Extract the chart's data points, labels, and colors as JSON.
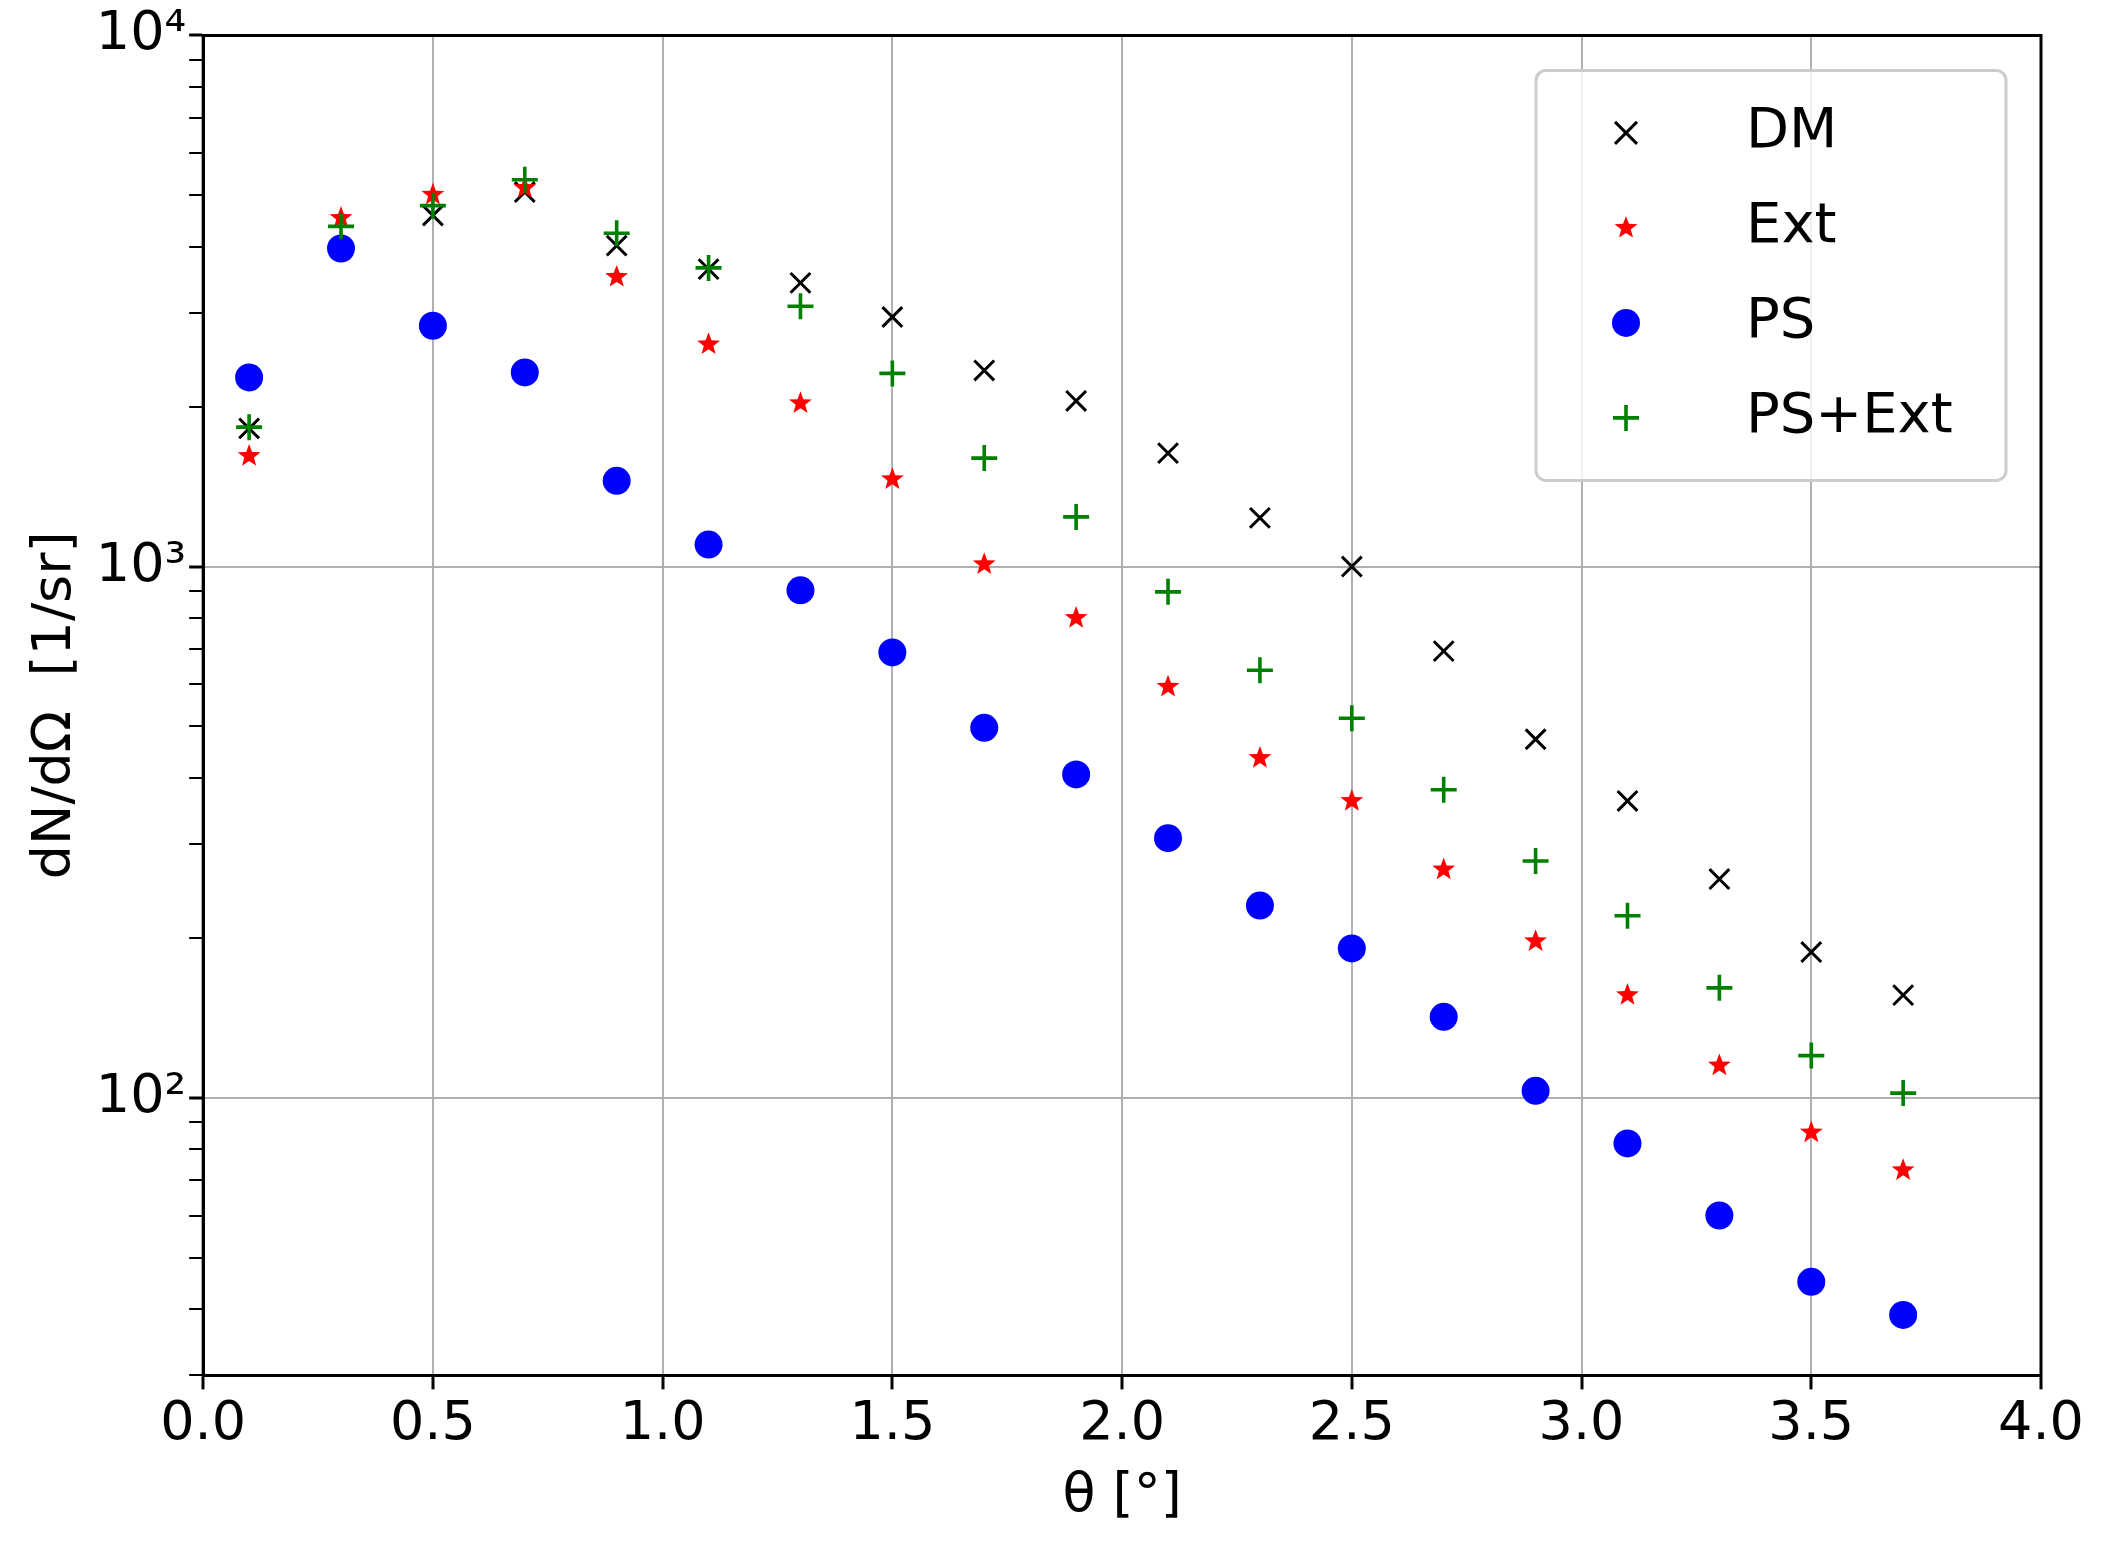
{
  "chart_data": {
    "type": "scatter",
    "xlabel": "θ [°]",
    "ylabel": "dN/dΩ  [1/sr]",
    "log": "y",
    "grid": true,
    "legend": "top right",
    "x": [
      0.1,
      0.3,
      0.5,
      0.7,
      0.9,
      1.1,
      1.3,
      1.5,
      1.7,
      1.9,
      2.1,
      2.3,
      2.5,
      2.7,
      2.9,
      3.1,
      3.3,
      3.5,
      3.7
    ],
    "xlim": [
      0,
      4
    ],
    "xticks": [
      {
        "value": 0,
        "label": "0.0"
      },
      0.5,
      {
        "value": 1,
        "label": "1.0"
      },
      1.5,
      {
        "value": 2,
        "label": "2.0"
      },
      2.5,
      {
        "value": 3,
        "label": "3.0"
      },
      3.5,
      {
        "value": 4,
        "label": "4.0"
      }
    ],
    "ylim": [
      30,
      10000
    ],
    "yticks": [
      {
        "value": 30,
        "label": null
      },
      {
        "value": 40,
        "label": null
      },
      {
        "value": 50,
        "label": null
      },
      {
        "value": 60,
        "label": null
      },
      {
        "value": 70,
        "label": null
      },
      {
        "value": 80,
        "label": null
      },
      {
        "value": 90,
        "label": null
      },
      {
        "value": 100,
        "label": "10²"
      },
      {
        "value": 200,
        "label": null
      },
      {
        "value": 300,
        "label": null
      },
      {
        "value": 400,
        "label": null
      },
      {
        "value": 500,
        "label": null
      },
      {
        "value": 600,
        "label": null
      },
      {
        "value": 700,
        "label": null
      },
      {
        "value": 800,
        "label": null
      },
      {
        "value": 900,
        "label": null
      },
      {
        "value": 1000,
        "label": "10³"
      },
      {
        "value": 2000,
        "label": null
      },
      {
        "value": 3000,
        "label": null
      },
      {
        "value": 4000,
        "label": null
      },
      {
        "value": 5000,
        "label": null
      },
      {
        "value": 6000,
        "label": null
      },
      {
        "value": 7000,
        "label": null
      },
      {
        "value": 8000,
        "label": null
      },
      {
        "value": 9000,
        "label": null
      },
      {
        "value": 10000,
        "label": "10⁴"
      }
    ],
    "series": [
      {
        "name": "DM",
        "color": "#000000",
        "marker": "x",
        "values": [
          1820,
          null,
          4580,
          5070,
          4020,
          3630,
          3420,
          2950,
          2340,
          2050,
          1635,
          1235,
          1000,
          693,
          473,
          362,
          258,
          188,
          156
        ]
      },
      {
        "name": "Ext",
        "color": "#ff0000",
        "marker": "star",
        "values": [
          1615,
          4530,
          5010,
          5160,
          3510,
          2620,
          2030,
          1460,
          1010,
          800,
          594,
          436,
          362,
          269,
          197,
          156,
          115,
          86,
          73
        ]
      },
      {
        "name": "PS",
        "color": "#0000ff",
        "marker": "circle",
        "values": [
          2270,
          3970,
          2840,
          2320,
          1450,
          1100,
          902,
          689,
          497,
          406,
          308,
          230,
          191,
          142,
          103,
          82,
          60,
          45,
          39
        ]
      },
      {
        "name": "PS+Ext",
        "color": "#008000",
        "marker": "cross",
        "values": [
          1830,
          4370,
          4780,
          5350,
          4240,
          3650,
          3090,
          2310,
          1600,
          1240,
          896,
          638,
          518,
          380,
          279,
          220,
          161,
          120,
          102
        ]
      }
    ]
  }
}
